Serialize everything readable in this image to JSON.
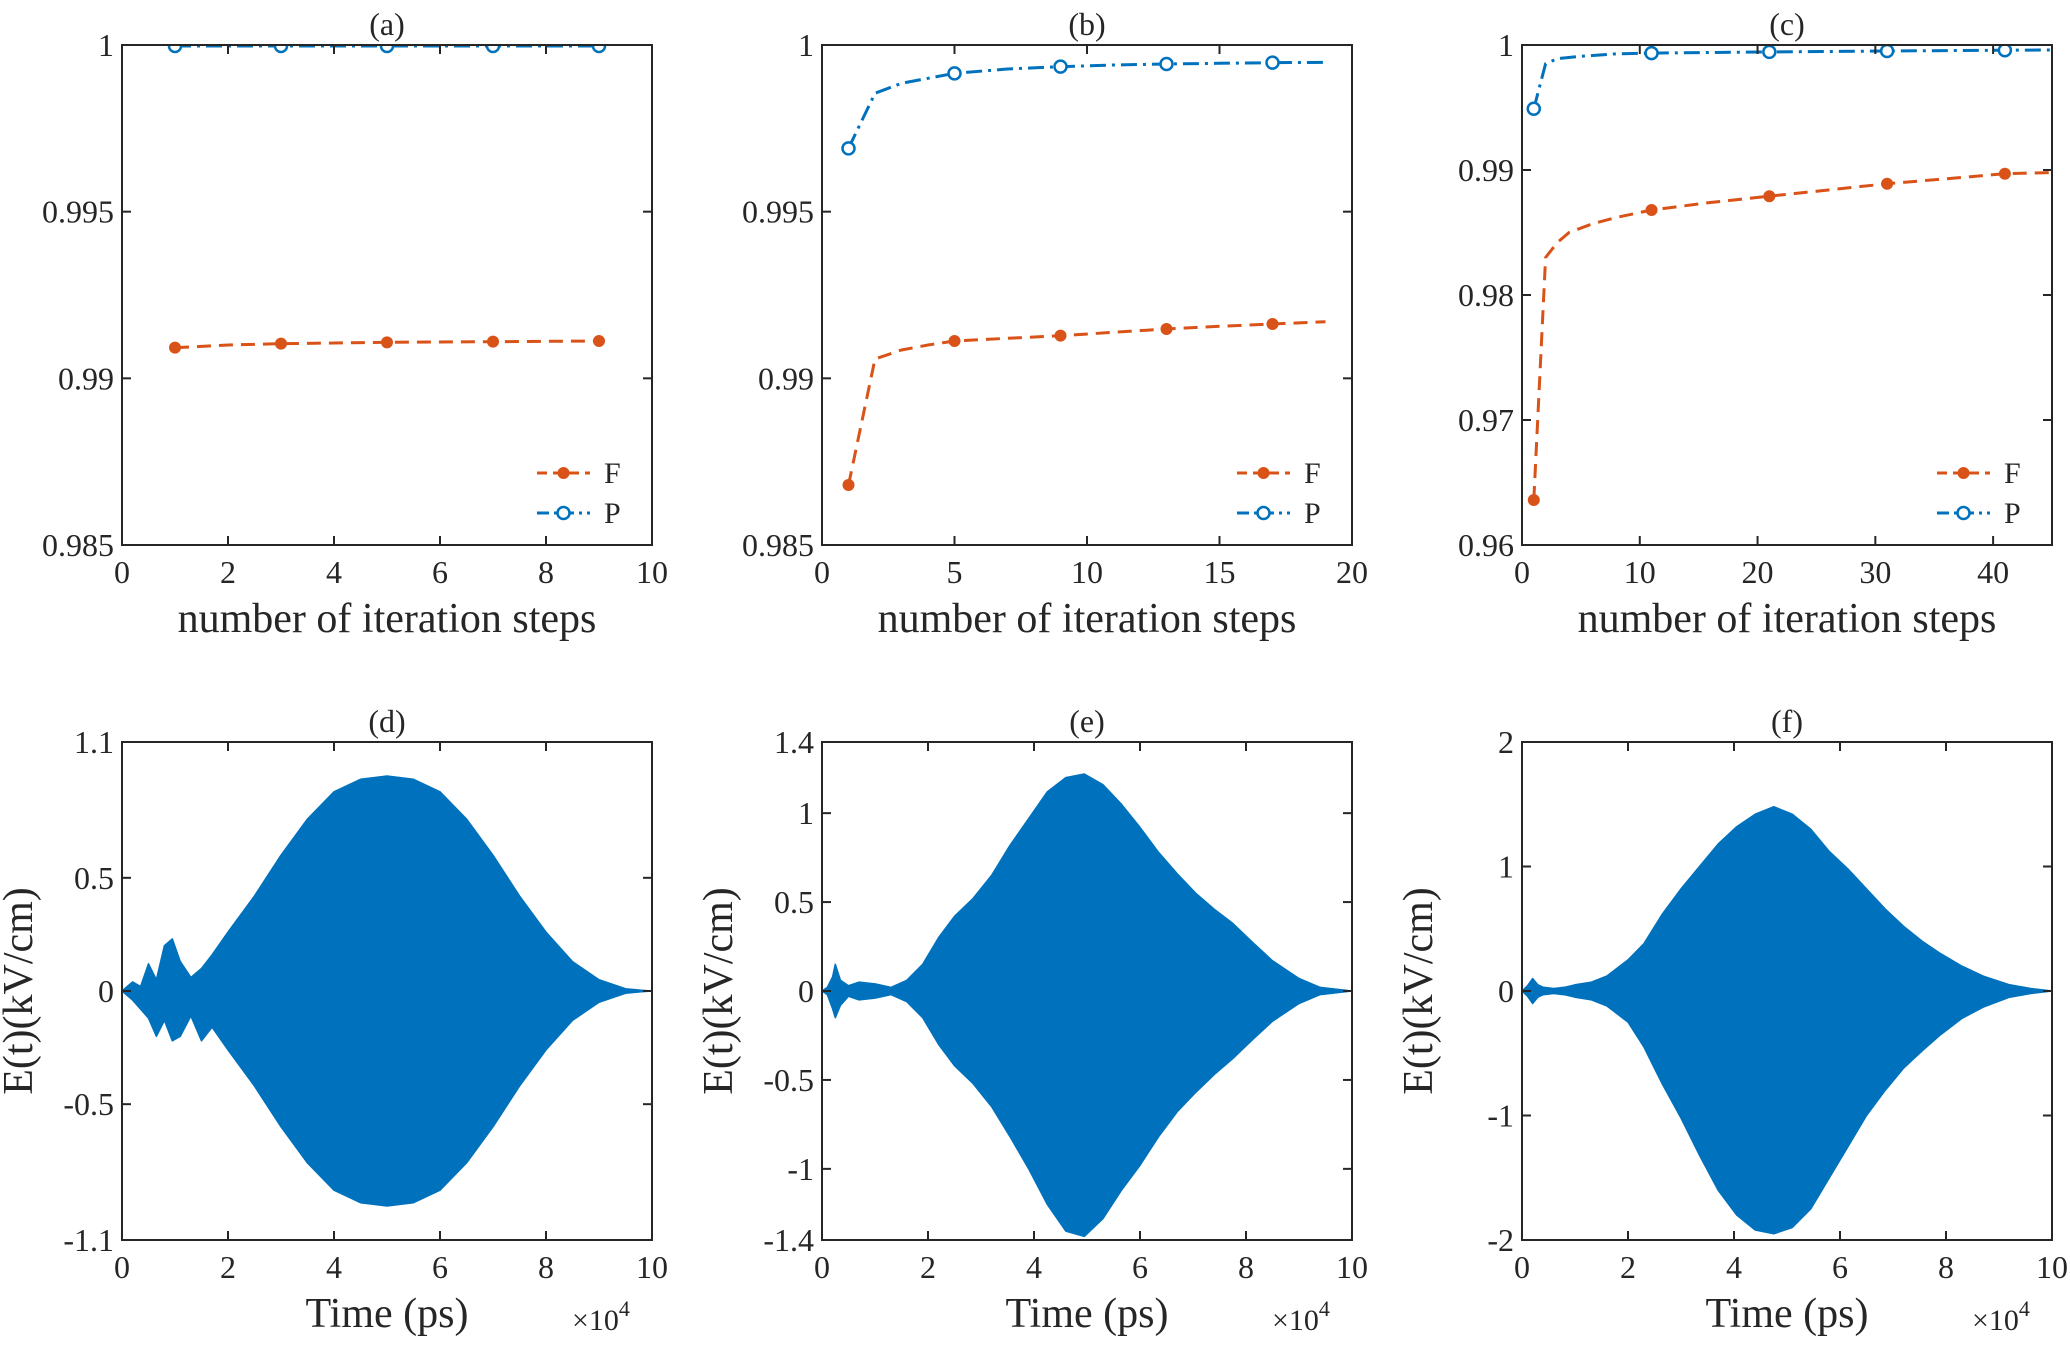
{
  "colors": {
    "F": "#D95319",
    "P": "#0072BD",
    "signal": "#0072BD",
    "axes": "#262626"
  },
  "chart_data": [
    {
      "panel": "(a)",
      "type": "line",
      "xlabel": "number of iteration steps",
      "ylabel": "",
      "xlim": [
        0,
        10
      ],
      "ylim": [
        0.985,
        1
      ],
      "xticks": [
        0,
        2,
        4,
        6,
        8,
        10
      ],
      "xtick_labels": [
        "0",
        "2",
        "4",
        "6",
        "8",
        "10"
      ],
      "yticks": [
        0.985,
        0.99,
        0.995,
        1
      ],
      "ytick_labels": [
        "0.985",
        "0.99",
        "0.995",
        "1"
      ],
      "legend": "bottom-right",
      "series": [
        {
          "name": "F",
          "style": "dashed",
          "marker": "filled-dot",
          "x": [
            1,
            2,
            3,
            4,
            5,
            6,
            7,
            8,
            9
          ],
          "y": [
            0.99092,
            0.991,
            0.99104,
            0.99106,
            0.99108,
            0.99109,
            0.9911,
            0.99111,
            0.99112
          ],
          "marker_x": [
            1,
            3,
            5,
            7,
            9
          ]
        },
        {
          "name": "P",
          "style": "dashdot",
          "marker": "open-circle",
          "x": [
            1,
            2,
            3,
            4,
            5,
            6,
            7,
            8,
            9
          ],
          "y": [
            0.99997,
            0.99997,
            0.99997,
            0.99997,
            0.99997,
            0.99997,
            0.99997,
            0.99997,
            0.99997
          ],
          "marker_x": [
            1,
            3,
            5,
            7,
            9
          ]
        }
      ]
    },
    {
      "panel": "(b)",
      "type": "line",
      "xlabel": "number of iteration steps",
      "ylabel": "",
      "xlim": [
        0,
        20
      ],
      "ylim": [
        0.985,
        1
      ],
      "xticks": [
        0,
        5,
        10,
        15,
        20
      ],
      "xtick_labels": [
        "0",
        "5",
        "10",
        "15",
        "20"
      ],
      "yticks": [
        0.985,
        0.99,
        0.995,
        1
      ],
      "ytick_labels": [
        "0.985",
        "0.99",
        "0.995",
        "1"
      ],
      "legend": "bottom-right",
      "series": [
        {
          "name": "F",
          "style": "dashed",
          "marker": "filled-dot",
          "x": [
            1,
            2,
            3,
            4,
            5,
            7,
            9,
            11,
            13,
            15,
            17,
            19
          ],
          "y": [
            0.9868,
            0.99058,
            0.99085,
            0.991,
            0.99112,
            0.9912,
            0.99128,
            0.99138,
            0.99148,
            0.99156,
            0.99163,
            0.9917
          ],
          "marker_x": [
            1,
            5,
            9,
            13,
            17
          ]
        },
        {
          "name": "P",
          "style": "dashdot",
          "marker": "open-circle",
          "x": [
            1,
            2,
            3,
            4,
            5,
            7,
            9,
            11,
            13,
            15,
            17,
            19
          ],
          "y": [
            0.9969,
            0.99855,
            0.99885,
            0.999,
            0.99915,
            0.99928,
            0.99935,
            0.9994,
            0.99943,
            0.99945,
            0.99947,
            0.99948
          ],
          "marker_x": [
            1,
            5,
            9,
            13,
            17
          ]
        }
      ]
    },
    {
      "panel": "(c)",
      "type": "line",
      "xlabel": "number of iteration steps",
      "ylabel": "",
      "xlim": [
        0,
        45
      ],
      "ylim": [
        0.96,
        1
      ],
      "xticks": [
        0,
        10,
        20,
        30,
        40
      ],
      "xtick_labels": [
        "0",
        "10",
        "20",
        "30",
        "40"
      ],
      "yticks": [
        0.96,
        0.97,
        0.98,
        0.99,
        1
      ],
      "ytick_labels": [
        "0.96",
        "0.97",
        "0.98",
        "0.99",
        "1"
      ],
      "legend": "bottom-right",
      "series": [
        {
          "name": "F",
          "style": "dashed",
          "marker": "filled-dot",
          "x": [
            1,
            2,
            3,
            4,
            6,
            8,
            11,
            16,
            21,
            26,
            31,
            36,
            41,
            45
          ],
          "y": [
            0.9636,
            0.983,
            0.9842,
            0.985,
            0.9857,
            0.9862,
            0.9868,
            0.9874,
            0.9879,
            0.9884,
            0.9889,
            0.9893,
            0.9897,
            0.9898
          ],
          "marker_x": [
            1,
            11,
            21,
            31,
            41
          ]
        },
        {
          "name": "P",
          "style": "dashdot",
          "marker": "open-circle",
          "x": [
            1,
            2,
            3,
            5,
            8,
            11,
            16,
            21,
            26,
            31,
            36,
            41,
            45
          ],
          "y": [
            0.9949,
            0.9985,
            0.9989,
            0.9991,
            0.9993,
            0.99935,
            0.9994,
            0.99945,
            0.99948,
            0.99952,
            0.99955,
            0.99958,
            0.9996
          ],
          "marker_x": [
            1,
            11,
            21,
            31,
            41
          ]
        }
      ]
    },
    {
      "panel": "(d)",
      "type": "area",
      "xlabel": "Time (ps)",
      "ylabel": "E(t)(kV/cm)",
      "x_exponent": "×10^4",
      "xlim": [
        0,
        10
      ],
      "ylim": [
        -1.1,
        1.1
      ],
      "xticks": [
        0,
        2,
        4,
        6,
        8,
        10
      ],
      "xtick_labels": [
        "0",
        "2",
        "4",
        "6",
        "8",
        "10"
      ],
      "yticks": [
        -1.1,
        -0.5,
        0,
        0.5,
        1.1
      ],
      "ytick_labels": [
        "-1.1",
        "-0.5",
        "0",
        "0.5",
        "1.1"
      ],
      "envelope_x": [
        0,
        0.2,
        0.35,
        0.5,
        0.65,
        0.8,
        0.95,
        1.1,
        1.3,
        1.5,
        1.7,
        2,
        2.5,
        3,
        3.5,
        4,
        4.5,
        5,
        5.5,
        6,
        6.5,
        7,
        7.5,
        8,
        8.5,
        9,
        9.5,
        9.8,
        10
      ],
      "envelope_upper": [
        0,
        0.04,
        0.02,
        0.12,
        0.05,
        0.2,
        0.23,
        0.13,
        0.06,
        0.1,
        0.16,
        0.26,
        0.42,
        0.6,
        0.76,
        0.88,
        0.935,
        0.95,
        0.935,
        0.88,
        0.76,
        0.6,
        0.42,
        0.26,
        0.13,
        0.05,
        0.01,
        0.003,
        0
      ],
      "envelope_lower": [
        0,
        -0.04,
        -0.08,
        -0.12,
        -0.2,
        -0.13,
        -0.22,
        -0.2,
        -0.11,
        -0.22,
        -0.16,
        -0.26,
        -0.42,
        -0.6,
        -0.76,
        -0.88,
        -0.935,
        -0.95,
        -0.935,
        -0.88,
        -0.76,
        -0.6,
        -0.42,
        -0.26,
        -0.13,
        -0.05,
        -0.01,
        -0.003,
        0
      ]
    },
    {
      "panel": "(e)",
      "type": "area",
      "xlabel": "Time (ps)",
      "ylabel": "E(t)(kV/cm)",
      "x_exponent": "×10^4",
      "xlim": [
        0,
        10
      ],
      "ylim": [
        -1.4,
        1.4
      ],
      "xticks": [
        0,
        2,
        4,
        6,
        8,
        10
      ],
      "xtick_labels": [
        "0",
        "2",
        "4",
        "6",
        "8",
        "10"
      ],
      "yticks": [
        -1.4,
        -1,
        -0.5,
        0,
        0.5,
        1,
        1.4
      ],
      "ytick_labels": [
        "-1.4",
        "-1",
        "-0.5",
        "0",
        "0.5",
        "1",
        "1.4"
      ],
      "envelope_x": [
        0,
        0.1,
        0.2,
        0.25,
        0.35,
        0.5,
        0.7,
        1,
        1.3,
        1.6,
        1.9,
        2.2,
        2.5,
        2.85,
        3.2,
        3.55,
        3.9,
        4.25,
        4.6,
        4.95,
        5.3,
        5.65,
        6,
        6.35,
        6.7,
        7.05,
        7.4,
        7.75,
        8.1,
        8.5,
        9,
        9.4,
        10
      ],
      "envelope_upper": [
        0,
        0.02,
        0.08,
        0.15,
        0.06,
        0.03,
        0.05,
        0.04,
        0.02,
        0.06,
        0.15,
        0.3,
        0.42,
        0.52,
        0.65,
        0.82,
        0.97,
        1.12,
        1.2,
        1.22,
        1.16,
        1.05,
        0.92,
        0.78,
        0.66,
        0.55,
        0.46,
        0.38,
        0.28,
        0.17,
        0.07,
        0.02,
        0
      ],
      "envelope_lower": [
        0,
        -0.02,
        -0.1,
        -0.15,
        -0.08,
        -0.03,
        -0.05,
        -0.04,
        -0.02,
        -0.06,
        -0.15,
        -0.3,
        -0.42,
        -0.52,
        -0.65,
        -0.82,
        -1.0,
        -1.2,
        -1.35,
        -1.38,
        -1.28,
        -1.12,
        -0.98,
        -0.82,
        -0.68,
        -0.57,
        -0.47,
        -0.38,
        -0.28,
        -0.17,
        -0.07,
        -0.02,
        0
      ]
    },
    {
      "panel": "(f)",
      "type": "area",
      "xlabel": "Time (ps)",
      "ylabel": "E(t)(kV/cm)",
      "x_exponent": "×10^4",
      "xlim": [
        0,
        10
      ],
      "ylim": [
        -2,
        2
      ],
      "xticks": [
        0,
        2,
        4,
        6,
        8,
        10
      ],
      "xtick_labels": [
        "0",
        "2",
        "4",
        "6",
        "8",
        "10"
      ],
      "yticks": [
        -2,
        -1,
        0,
        1,
        2
      ],
      "ytick_labels": [
        "-2",
        "-1",
        "0",
        "1",
        "2"
      ],
      "envelope_x": [
        0,
        0.1,
        0.2,
        0.3,
        0.4,
        0.6,
        0.8,
        1,
        1.3,
        1.6,
        2,
        2.3,
        2.65,
        3,
        3.35,
        3.7,
        4.05,
        4.4,
        4.75,
        5.1,
        5.45,
        5.8,
        6.15,
        6.5,
        6.85,
        7.2,
        7.55,
        7.9,
        8.3,
        8.7,
        9.2,
        9.6,
        10
      ],
      "envelope_upper": [
        0,
        0.04,
        0.1,
        0.05,
        0.03,
        0.02,
        0.03,
        0.05,
        0.07,
        0.12,
        0.25,
        0.38,
        0.62,
        0.82,
        1.0,
        1.18,
        1.32,
        1.42,
        1.48,
        1.42,
        1.3,
        1.12,
        0.98,
        0.82,
        0.66,
        0.52,
        0.4,
        0.3,
        0.2,
        0.12,
        0.05,
        0.02,
        0
      ],
      "envelope_lower": [
        0,
        -0.04,
        -0.1,
        -0.05,
        -0.03,
        -0.02,
        -0.03,
        -0.05,
        -0.07,
        -0.12,
        -0.25,
        -0.45,
        -0.75,
        -1.02,
        -1.32,
        -1.6,
        -1.8,
        -1.92,
        -1.95,
        -1.9,
        -1.75,
        -1.5,
        -1.25,
        -1.0,
        -0.8,
        -0.62,
        -0.48,
        -0.35,
        -0.22,
        -0.13,
        -0.05,
        -0.02,
        0
      ]
    }
  ]
}
